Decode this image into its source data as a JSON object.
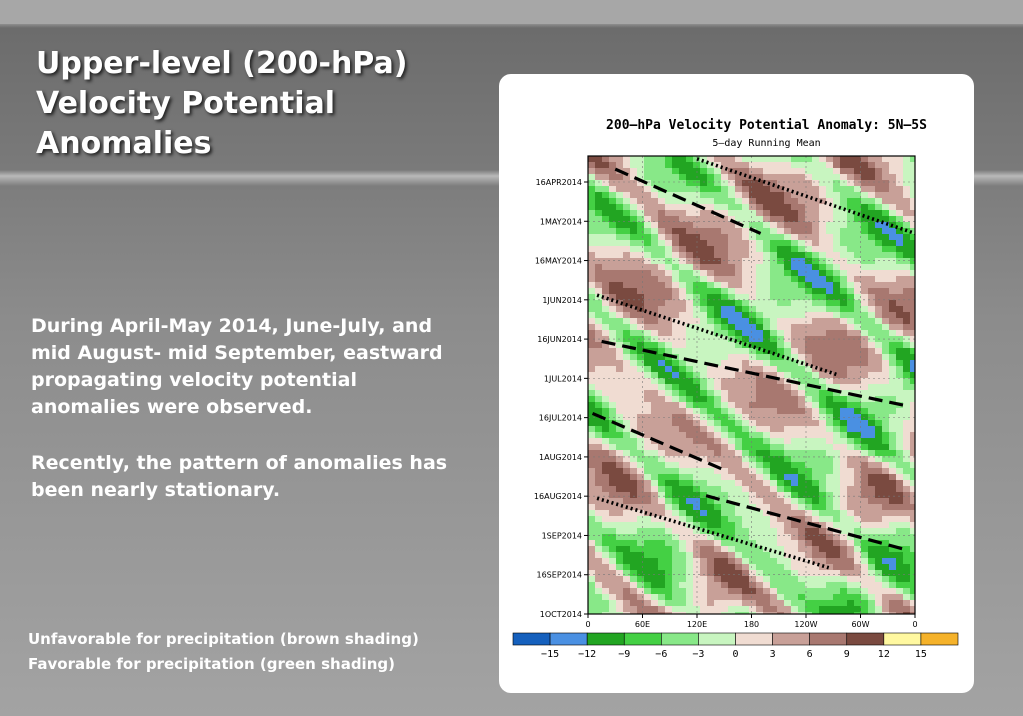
{
  "slide": {
    "title": "Upper-level (200-hPa) Velocity Potential Anomalies",
    "paragraph1": "During April-May 2014, June-July, and mid August- mid September, eastward propagating velocity potential anomalies were observed.",
    "paragraph2": "Recently, the pattern of anomalies has been nearly stationary.",
    "note_unfavorable": "Unfavorable for precipitation (brown shading)",
    "note_favorable": "Favorable for precipitation (green shading)"
  },
  "chart_data": {
    "type": "heatmap",
    "title": "200—hPa Velocity Potential Anomaly: 5N—5S",
    "subtitle": "5—day Running Mean",
    "x_ticks": [
      "0",
      "60E",
      "120E",
      "180",
      "120W",
      "60W",
      "0"
    ],
    "x_range_deg_east": [
      0,
      360
    ],
    "y_ticks": [
      "16APR2014",
      "1MAY2014",
      "16MAY2014",
      "1JUN2014",
      "16JUN2014",
      "1JUL2014",
      "16JUL2014",
      "1AUG2014",
      "16AUG2014",
      "1SEP2014",
      "16SEP2014",
      "1OCT2014"
    ],
    "y_range": [
      "2014-04-16",
      "2014-10-01"
    ],
    "y_direction": "time increases downward",
    "colorbar": {
      "labels": [
        "−15",
        "−12",
        "−9",
        "−6",
        "−3",
        "0",
        "3",
        "6",
        "9",
        "12",
        "15"
      ],
      "colors": [
        "#1560bd",
        "#4a90e2",
        "#22a522",
        "#44d044",
        "#88e888",
        "#c8f5c0",
        "#f0dcd2",
        "#c8a098",
        "#a87870",
        "#7a4a40",
        "#fff8a0",
        "#f5b22a"
      ]
    },
    "propagation_lines": [
      {
        "style": "dashed",
        "start": {
          "lon": 30,
          "date": "2014-04-11"
        },
        "end": {
          "lon": 190,
          "date": "2014-05-06"
        }
      },
      {
        "style": "dotted",
        "start": {
          "lon": 120,
          "date": "2014-04-07"
        },
        "end": {
          "lon": 360,
          "date": "2014-05-06"
        }
      },
      {
        "style": "dotted",
        "start": {
          "lon": 10,
          "date": "2014-05-30"
        },
        "end": {
          "lon": 275,
          "date": "2014-06-30"
        }
      },
      {
        "style": "dashed",
        "start": {
          "lon": 15,
          "date": "2014-06-17"
        },
        "end": {
          "lon": 350,
          "date": "2014-07-12"
        }
      },
      {
        "style": "dashed",
        "start": {
          "lon": 5,
          "date": "2014-07-15"
        },
        "end": {
          "lon": 150,
          "date": "2014-08-06"
        }
      },
      {
        "style": "dashed",
        "start": {
          "lon": 130,
          "date": "2014-08-16"
        },
        "end": {
          "lon": 350,
          "date": "2014-09-06"
        }
      },
      {
        "style": "dotted",
        "start": {
          "lon": 10,
          "date": "2014-08-17"
        },
        "end": {
          "lon": 265,
          "date": "2014-09-13"
        }
      }
    ]
  }
}
